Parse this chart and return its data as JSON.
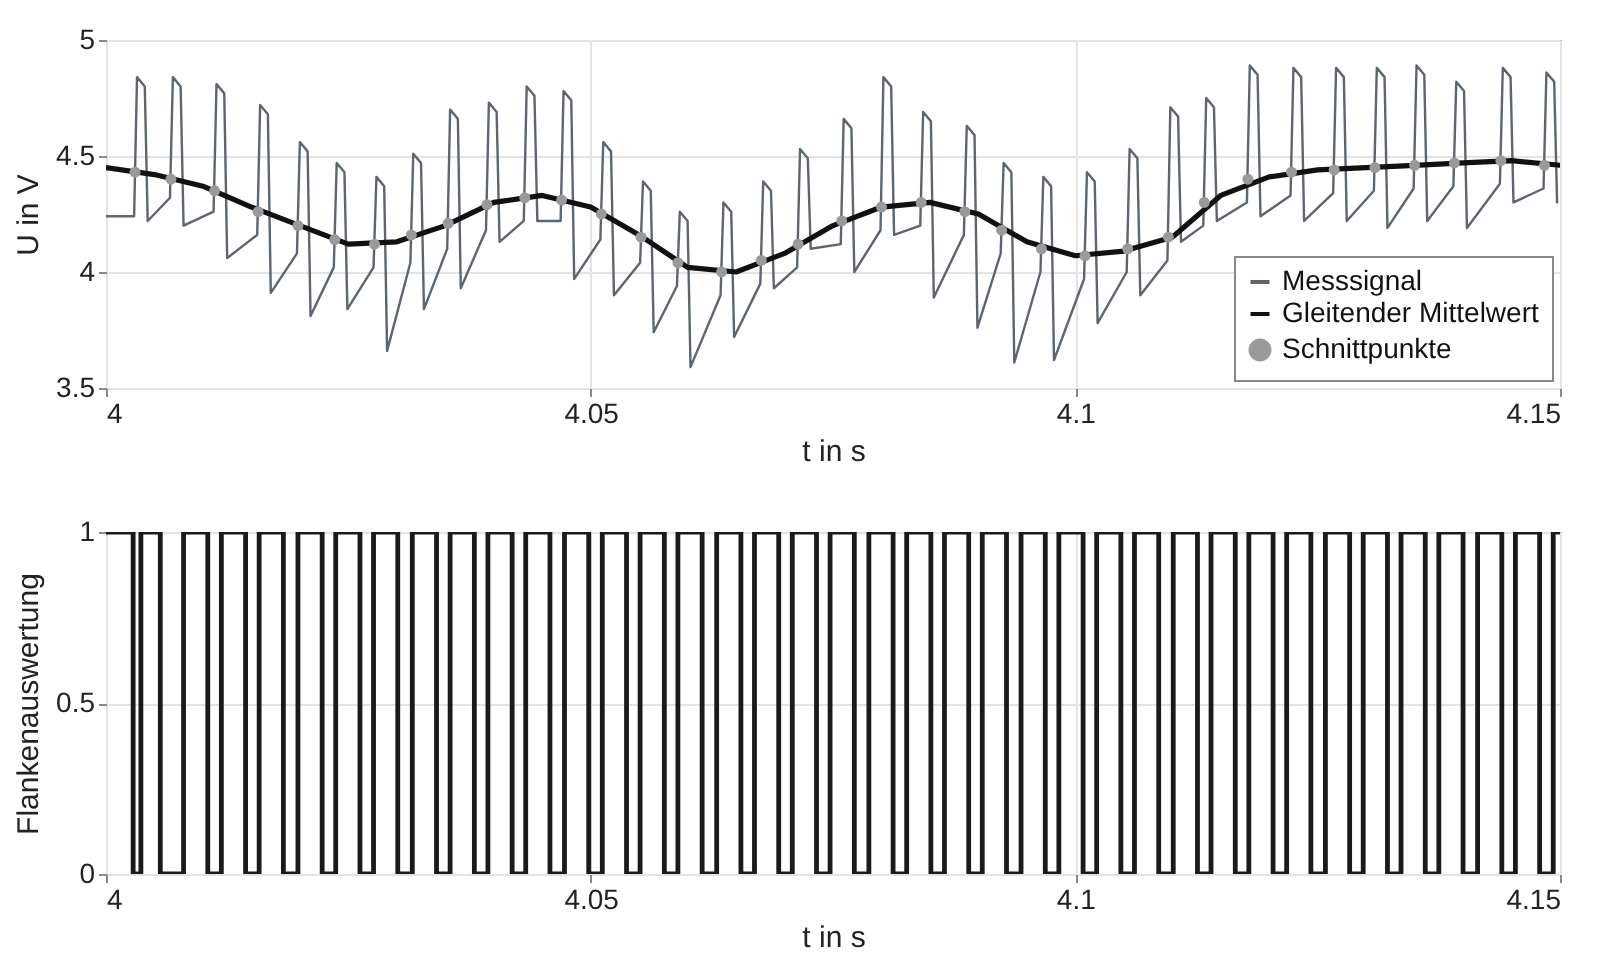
{
  "chart_data": [
    {
      "type": "line",
      "xlabel": "t in s",
      "ylabel": "U in V",
      "xlim": [
        4,
        4.15
      ],
      "ylim": [
        3.5,
        5
      ],
      "xticks": [
        4,
        4.05,
        4.1,
        4.15
      ],
      "yticks": [
        3.5,
        4,
        4.5,
        5
      ],
      "grid": true,
      "legend": "bottom right",
      "series": [
        {
          "name": "Messsignal",
          "color": "#5b6670",
          "x": [
            4,
            4.0029,
            4.0032,
            4.004,
            4.0043,
            4.0066,
            4.0069,
            4.0077,
            4.008,
            4.0111,
            4.0114,
            4.0122,
            4.0125,
            4.0156,
            4.0159,
            4.0167,
            4.017,
            4.0197,
            4.02,
            4.0208,
            4.0211,
            4.0235,
            4.0238,
            4.0246,
            4.0249,
            4.0276,
            4.0279,
            4.0287,
            4.029,
            4.0314,
            4.0317,
            4.0325,
            4.0328,
            4.0352,
            4.0355,
            4.0363,
            4.0366,
            4.0392,
            4.0395,
            4.0403,
            4.0406,
            4.0431,
            4.0434,
            4.0442,
            4.0445,
            4.0469,
            4.0472,
            4.048,
            4.0483,
            4.051,
            4.0513,
            4.0521,
            4.0524,
            4.0551,
            4.0554,
            4.0562,
            4.0565,
            4.0589,
            4.0592,
            4.06,
            4.0603,
            4.0634,
            4.0637,
            4.0645,
            4.0648,
            4.0675,
            4.0678,
            4.0686,
            4.0689,
            4.0713,
            4.0716,
            4.0724,
            4.0727,
            4.0758,
            4.0761,
            4.0769,
            4.0772,
            4.0799,
            4.0802,
            4.081,
            4.0813,
            4.084,
            4.0843,
            4.0851,
            4.0854,
            4.0885,
            4.0888,
            4.0896,
            4.0899,
            4.0923,
            4.0926,
            4.0934,
            4.0937,
            4.0964,
            4.0967,
            4.0975,
            4.0978,
            4.1009,
            4.1012,
            4.102,
            4.1023,
            4.1053,
            4.1056,
            4.1064,
            4.1067,
            4.1095,
            4.1098,
            4.1106,
            4.1109,
            4.1132,
            4.1135,
            4.1143,
            4.1146,
            4.1177,
            4.118,
            4.1188,
            4.1191,
            4.1222,
            4.1225,
            4.1233,
            4.1236,
            4.1266,
            4.1269,
            4.1277,
            4.128,
            4.1308,
            4.1311,
            4.1319,
            4.1322,
            4.1349,
            4.1352,
            4.136,
            4.1363,
            4.139,
            4.1393,
            4.1401,
            4.1404,
            4.1438,
            4.1441,
            4.1449,
            4.1452,
            4.1483,
            4.1486,
            4.1494,
            4.1497
          ],
          "values": [
            4.24,
            4.24,
            4.84,
            4.8,
            4.22,
            4.32,
            4.84,
            4.8,
            4.2,
            4.26,
            4.81,
            4.77,
            4.06,
            4.16,
            4.72,
            4.68,
            3.91,
            4.08,
            4.56,
            4.52,
            3.81,
            4.02,
            4.47,
            4.43,
            3.84,
            4.02,
            4.41,
            4.37,
            3.66,
            4.04,
            4.51,
            4.47,
            3.84,
            4.1,
            4.7,
            4.66,
            3.93,
            4.18,
            4.73,
            4.69,
            4.13,
            4.22,
            4.8,
            4.76,
            4.22,
            4.22,
            4.78,
            4.74,
            3.97,
            4.14,
            4.56,
            4.52,
            3.9,
            4.04,
            4.39,
            4.35,
            3.74,
            3.94,
            4.26,
            4.22,
            3.59,
            3.9,
            4.3,
            4.26,
            3.72,
            3.95,
            4.39,
            4.35,
            3.93,
            4.02,
            4.53,
            4.49,
            4.1,
            4.12,
            4.66,
            4.62,
            4.0,
            4.18,
            4.84,
            4.8,
            4.16,
            4.2,
            4.69,
            4.65,
            3.89,
            4.16,
            4.63,
            4.59,
            3.76,
            4.08,
            4.47,
            4.43,
            3.61,
            4.0,
            4.41,
            4.37,
            3.62,
            3.97,
            4.43,
            4.39,
            3.78,
            4.0,
            4.53,
            4.49,
            3.9,
            4.05,
            4.71,
            4.67,
            4.13,
            4.2,
            4.75,
            4.71,
            4.22,
            4.3,
            4.89,
            4.85,
            4.24,
            4.33,
            4.88,
            4.84,
            4.22,
            4.34,
            4.88,
            4.84,
            4.22,
            4.35,
            4.88,
            4.84,
            4.19,
            4.36,
            4.89,
            4.85,
            4.22,
            4.37,
            4.82,
            4.78,
            4.19,
            4.38,
            4.88,
            4.84,
            4.3,
            4.36,
            4.86,
            4.82,
            4.3
          ]
        },
        {
          "name": "Gleitender Mittelwert",
          "color": "#111111",
          "x": [
            4,
            4.005,
            4.01,
            4.015,
            4.02,
            4.025,
            4.03,
            4.035,
            4.04,
            4.045,
            4.05,
            4.055,
            4.06,
            4.065,
            4.07,
            4.075,
            4.08,
            4.085,
            4.09,
            4.095,
            4.1,
            4.105,
            4.11,
            4.115,
            4.12,
            4.125,
            4.13,
            4.135,
            4.14,
            4.145,
            4.15
          ],
          "values": [
            4.45,
            4.42,
            4.37,
            4.28,
            4.2,
            4.12,
            4.13,
            4.2,
            4.3,
            4.33,
            4.28,
            4.16,
            4.02,
            4.0,
            4.08,
            4.2,
            4.28,
            4.3,
            4.25,
            4.13,
            4.07,
            4.09,
            4.15,
            4.33,
            4.41,
            4.44,
            4.45,
            4.46,
            4.47,
            4.48,
            4.46
          ]
        },
        {
          "name": "Schnittpunkte",
          "type": "scatter",
          "color": "#9a9a9a",
          "x": [
            4.003,
            4.0067,
            4.0112,
            4.0157,
            4.0198,
            4.0236,
            4.0277,
            4.0315,
            4.0353,
            4.0393,
            4.0432,
            4.047,
            4.0511,
            4.0552,
            4.059,
            4.0635,
            4.0676,
            4.0714,
            4.0759,
            4.08,
            4.0841,
            4.0886,
            4.0924,
            4.0965,
            4.101,
            4.1054,
            4.1096,
            4.1133,
            4.1178,
            4.1223,
            4.1267,
            4.1309,
            4.135,
            4.1391,
            4.1439,
            4.1484
          ],
          "values": [
            4.43,
            4.4,
            4.35,
            4.26,
            4.2,
            4.14,
            4.12,
            4.16,
            4.21,
            4.29,
            4.32,
            4.31,
            4.25,
            4.15,
            4.04,
            4.0,
            4.05,
            4.12,
            4.22,
            4.28,
            4.3,
            4.26,
            4.18,
            4.1,
            4.07,
            4.1,
            4.15,
            4.3,
            4.4,
            4.43,
            4.44,
            4.45,
            4.46,
            4.47,
            4.48,
            4.46
          ]
        }
      ]
    },
    {
      "type": "step",
      "xlabel": "t in s",
      "ylabel": "Flankenauswertung",
      "xlim": [
        4,
        4.15
      ],
      "ylim": [
        0,
        1
      ],
      "xticks": [
        4,
        4.05,
        4.1,
        4.15
      ],
      "yticks": [
        0,
        0.5,
        1
      ],
      "grid": true,
      "series": [
        {
          "color": "#1a1a1a",
          "x": [
            4,
            4.0028,
            4.0036,
            4.0056,
            4.008,
            4.0105,
            4.0119,
            4.0144,
            4.0158,
            4.0183,
            4.0198,
            4.0223,
            4.0237,
            4.0262,
            4.0276,
            4.0301,
            4.0316,
            4.0341,
            4.0355,
            4.038,
            4.0394,
            4.0419,
            4.0433,
            4.0458,
            4.0473,
            4.0498,
            4.0512,
            4.0537,
            4.0551,
            4.0576,
            4.059,
            4.0615,
            4.063,
            4.0655,
            4.0669,
            4.0694,
            4.0708,
            4.0733,
            4.0747,
            4.0772,
            4.0787,
            4.0812,
            4.0826,
            4.0851,
            4.0865,
            4.089,
            4.0904,
            4.0929,
            4.0944,
            4.0969,
            4.0983,
            4.1008,
            4.1022,
            4.1047,
            4.1061,
            4.1086,
            4.1101,
            4.1126,
            4.114,
            4.1165,
            4.1179,
            4.1204,
            4.1218,
            4.1243,
            4.1258,
            4.1283,
            4.1297,
            4.1322,
            4.1336,
            4.1361,
            4.1375,
            4.14,
            4.1415,
            4.144,
            4.1454,
            4.1479,
            4.1493,
            4.15
          ],
          "values": [
            1,
            0,
            1,
            0,
            1,
            0,
            1,
            0,
            1,
            0,
            1,
            0,
            1,
            0,
            1,
            0,
            1,
            0,
            1,
            0,
            1,
            0,
            1,
            0,
            1,
            0,
            1,
            0,
            1,
            0,
            1,
            0,
            1,
            0,
            1,
            0,
            1,
            0,
            1,
            0,
            1,
            0,
            1,
            0,
            1,
            0,
            1,
            0,
            1,
            0,
            1,
            0,
            1,
            0,
            1,
            0,
            1,
            0,
            1,
            0,
            1,
            0,
            1,
            0,
            1,
            0,
            1,
            0,
            1,
            0,
            1,
            0,
            1,
            0,
            1,
            0,
            1,
            1
          ]
        }
      ]
    }
  ]
}
